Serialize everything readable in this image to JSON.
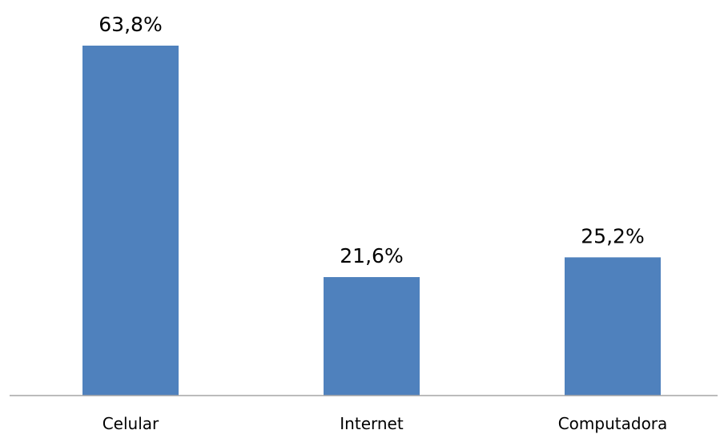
{
  "chart_data": {
    "type": "bar",
    "categories": [
      "Celular",
      "Internet",
      "Computadora"
    ],
    "values": [
      63.8,
      21.6,
      25.2
    ],
    "data_labels": [
      "63,8%",
      "21,6%",
      "25,2%"
    ],
    "title": "",
    "xlabel": "",
    "ylabel": "",
    "ylim": [
      0,
      70
    ],
    "grid": false,
    "legend": "none",
    "colors": {
      "bar": "#4f81bd",
      "axis": "#a6a6a6"
    }
  }
}
